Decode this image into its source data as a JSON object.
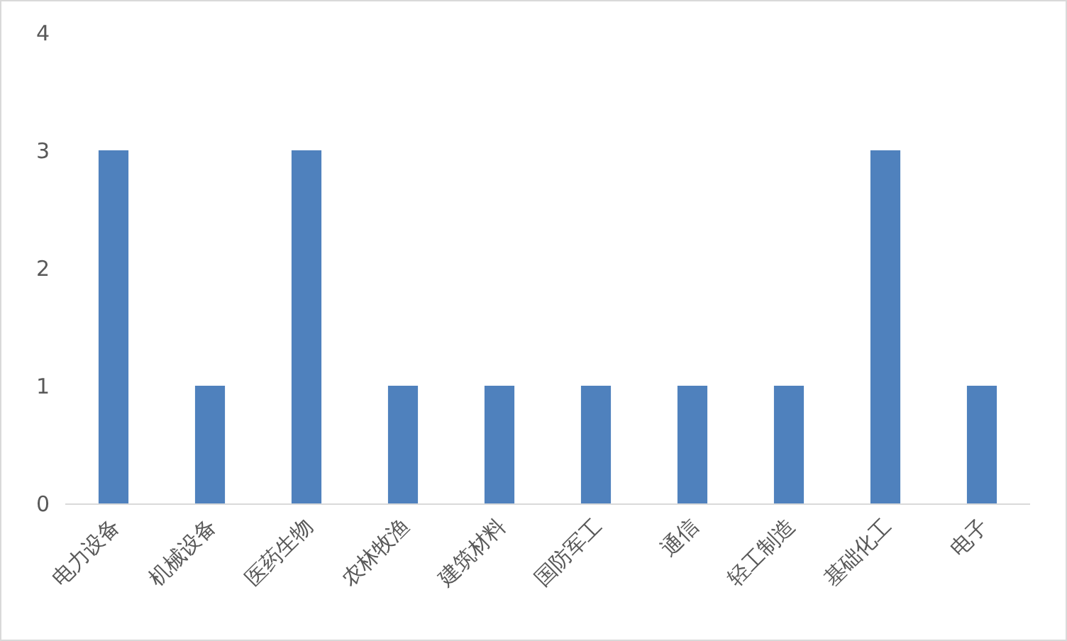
{
  "chart_data": {
    "type": "bar",
    "categories": [
      "电力设备",
      "机械设备",
      "医药生物",
      "农林牧渔",
      "建筑材料",
      "国防军工",
      "通信",
      "轻工制造",
      "基础化工",
      "电子"
    ],
    "values": [
      3,
      1,
      3,
      1,
      1,
      1,
      1,
      1,
      3,
      1
    ],
    "color": "#4f81bd",
    "ylim": [
      0,
      4
    ],
    "yticks": [
      0,
      1,
      2,
      3,
      4
    ]
  }
}
